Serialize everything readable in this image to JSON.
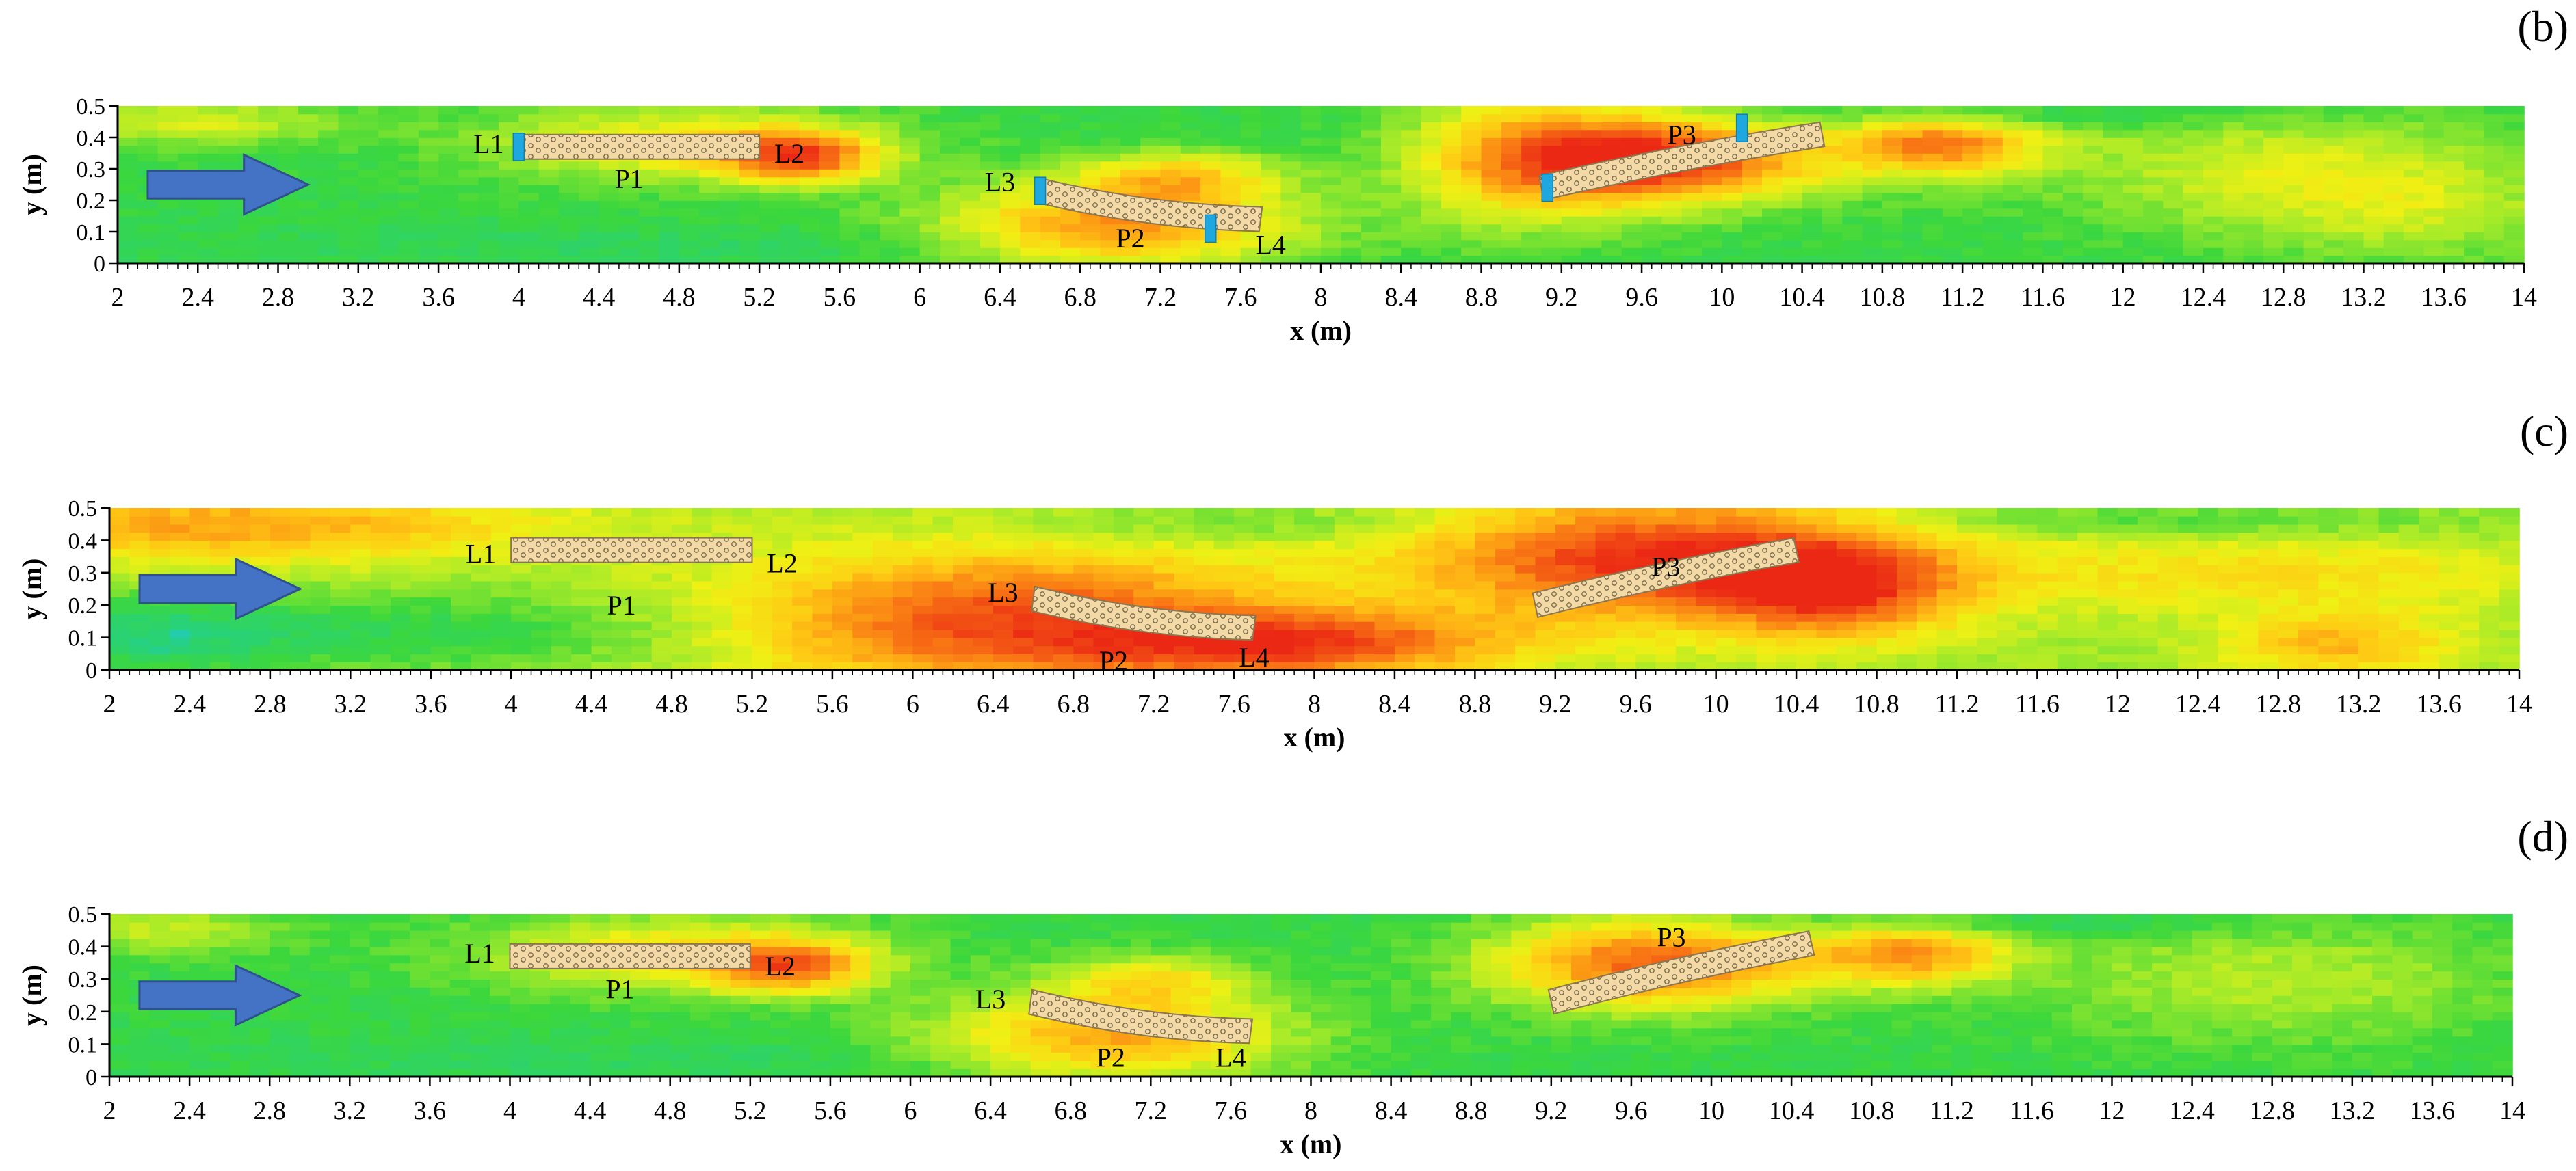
{
  "chart_data": [
    {
      "panel": "(b)",
      "type": "heatmap",
      "xlabel": "x (m)",
      "ylabel": "y (m)",
      "xlim": [
        2,
        14
      ],
      "ylim": [
        0,
        0.5
      ],
      "xticks": [
        "2",
        "2.4",
        "2.8",
        "3.2",
        "3.6",
        "4",
        "4.4",
        "4.8",
        "5.2",
        "5.6",
        "6",
        "6.4",
        "6.8",
        "7.2",
        "7.6",
        "8",
        "8.4",
        "8.8",
        "9.2",
        "9.6",
        "10",
        "10.4",
        "10.8",
        "11.2",
        "11.6",
        "12",
        "12.4",
        "12.8",
        "13.2",
        "13.6",
        "14"
      ],
      "yticks": [
        "0",
        "0.1",
        "0.2",
        "0.3",
        "0.4",
        "0.5"
      ],
      "flow_direction": "right",
      "structures": [
        {
          "label": "P1",
          "x_start": 4.0,
          "x_end": 5.2,
          "y_start": 0.37,
          "y_end": 0.37,
          "curvature": 0,
          "label_x": 4.55,
          "label_y": 0.27
        },
        {
          "label": "P2",
          "x_start": 6.6,
          "x_end": 7.7,
          "y_start": 0.23,
          "y_end": 0.14,
          "curvature": 0.05,
          "label_x": 7.05,
          "label_y": 0.08
        },
        {
          "label": "P3",
          "x_start": 9.1,
          "x_end": 10.5,
          "y_start": 0.24,
          "y_end": 0.41,
          "curvature": -0.02,
          "label_x": 9.8,
          "label_y": 0.41
        }
      ],
      "gaps": [
        {
          "label": "L1",
          "x": 4.0,
          "y": 0.37,
          "label_x": 3.85,
          "label_y": 0.38,
          "marker": true
        },
        {
          "label": "L2",
          "x": 5.2,
          "y": 0.37,
          "label_x": 5.35,
          "label_y": 0.35,
          "marker": false
        },
        {
          "label": "L3",
          "x": 6.6,
          "y": 0.23,
          "label_x": 6.4,
          "label_y": 0.26,
          "marker": true
        },
        {
          "label": "L4",
          "x": 7.45,
          "y": 0.11,
          "label_x": 7.75,
          "label_y": 0.06,
          "marker": true
        },
        {
          "label": "P3-lower",
          "x": 9.13,
          "y": 0.24,
          "marker": true
        },
        {
          "label": "P3-upper",
          "x": 10.1,
          "y": 0.43,
          "marker": true
        }
      ],
      "field": {
        "base": 0.22,
        "blobs": [
          {
            "x": 2.4,
            "y": 0.45,
            "rx": 0.7,
            "ry": 0.08,
            "a": 0.25
          },
          {
            "x": 4.8,
            "y": 0.38,
            "rx": 1.0,
            "ry": 0.12,
            "a": 0.35
          },
          {
            "x": 5.4,
            "y": 0.34,
            "rx": 0.4,
            "ry": 0.08,
            "a": 0.55
          },
          {
            "x": 7.0,
            "y": 0.12,
            "rx": 0.9,
            "ry": 0.14,
            "a": 0.55
          },
          {
            "x": 7.3,
            "y": 0.28,
            "rx": 0.5,
            "ry": 0.08,
            "a": 0.35
          },
          {
            "x": 9.0,
            "y": 0.35,
            "rx": 0.6,
            "ry": 0.25,
            "a": 0.35
          },
          {
            "x": 9.7,
            "y": 0.33,
            "rx": 0.8,
            "ry": 0.14,
            "a": 0.75
          },
          {
            "x": 11.1,
            "y": 0.38,
            "rx": 0.5,
            "ry": 0.1,
            "a": 0.55
          },
          {
            "x": 12.8,
            "y": 0.3,
            "rx": 1.2,
            "ry": 0.2,
            "a": 0.25
          },
          {
            "x": 13.5,
            "y": 0.15,
            "rx": 0.8,
            "ry": 0.15,
            "a": 0.15
          },
          {
            "x": 5.0,
            "y": 0.05,
            "rx": 2.5,
            "ry": 0.07,
            "a": -0.05
          },
          {
            "x": 11.5,
            "y": 0.47,
            "rx": 1.5,
            "ry": 0.04,
            "a": -0.1
          }
        ]
      }
    },
    {
      "panel": "(c)",
      "type": "heatmap",
      "xlabel": "x (m)",
      "ylabel": "y (m)",
      "xlim": [
        2,
        14
      ],
      "ylim": [
        0,
        0.5
      ],
      "xticks": [
        "2",
        "2.4",
        "2.8",
        "3.2",
        "3.6",
        "4",
        "4.4",
        "4.8",
        "5.2",
        "5.6",
        "6",
        "6.4",
        "6.8",
        "7.2",
        "7.6",
        "8",
        "8.4",
        "8.8",
        "9.2",
        "9.6",
        "10",
        "10.4",
        "10.8",
        "11.2",
        "11.6",
        "12",
        "12.4",
        "12.8",
        "13.2",
        "13.6",
        "14"
      ],
      "yticks": [
        "0",
        "0.1",
        "0.2",
        "0.3",
        "0.4",
        "0.5"
      ],
      "flow_direction": "right",
      "structures": [
        {
          "label": "P1",
          "x_start": 4.0,
          "x_end": 5.2,
          "y_start": 0.37,
          "y_end": 0.37,
          "curvature": 0,
          "label_x": 4.55,
          "label_y": 0.2
        },
        {
          "label": "P2",
          "x_start": 6.6,
          "x_end": 7.7,
          "y_start": 0.22,
          "y_end": 0.13,
          "curvature": 0.05,
          "label_x": 7.0,
          "label_y": 0.03
        },
        {
          "label": "P3",
          "x_start": 9.1,
          "x_end": 10.4,
          "y_start": 0.2,
          "y_end": 0.37,
          "curvature": -0.02,
          "label_x": 9.75,
          "label_y": 0.32
        }
      ],
      "gaps": [
        {
          "label": "L1",
          "x": 4.0,
          "y": 0.37,
          "label_x": 3.85,
          "label_y": 0.36,
          "marker": false
        },
        {
          "label": "L2",
          "x": 5.2,
          "y": 0.37,
          "label_x": 5.35,
          "label_y": 0.33,
          "marker": false
        },
        {
          "label": "L3",
          "x": 6.6,
          "y": 0.22,
          "label_x": 6.45,
          "label_y": 0.24,
          "marker": false
        },
        {
          "label": "L4",
          "x": 7.6,
          "y": 0.1,
          "label_x": 7.7,
          "label_y": 0.04,
          "marker": false
        }
      ],
      "field": {
        "base": 0.38,
        "blobs": [
          {
            "x": 2.6,
            "y": 0.45,
            "rx": 1.6,
            "ry": 0.12,
            "a": 0.35
          },
          {
            "x": 3.5,
            "y": 0.12,
            "rx": 1.6,
            "ry": 0.12,
            "a": -0.18
          },
          {
            "x": 2.2,
            "y": 0.1,
            "rx": 0.6,
            "ry": 0.12,
            "a": -0.2
          },
          {
            "x": 6.5,
            "y": 0.15,
            "rx": 1.4,
            "ry": 0.22,
            "a": 0.55
          },
          {
            "x": 8.0,
            "y": 0.08,
            "rx": 1.0,
            "ry": 0.1,
            "a": 0.45
          },
          {
            "x": 9.7,
            "y": 0.35,
            "rx": 1.2,
            "ry": 0.2,
            "a": 0.6
          },
          {
            "x": 10.6,
            "y": 0.25,
            "rx": 0.6,
            "ry": 0.15,
            "a": 0.45
          },
          {
            "x": 12.7,
            "y": 0.3,
            "rx": 1.6,
            "ry": 0.12,
            "a": 0.2
          },
          {
            "x": 13.1,
            "y": 0.08,
            "rx": 0.6,
            "ry": 0.1,
            "a": 0.3
          },
          {
            "x": 7.8,
            "y": 0.45,
            "rx": 1.2,
            "ry": 0.06,
            "a": -0.1
          },
          {
            "x": 12.0,
            "y": 0.46,
            "rx": 1.8,
            "ry": 0.05,
            "a": -0.12
          }
        ]
      }
    },
    {
      "panel": "(d)",
      "type": "heatmap",
      "xlabel": "x (m)",
      "ylabel": "y (m)",
      "xlim": [
        2,
        14
      ],
      "ylim": [
        0,
        0.5
      ],
      "xticks": [
        "2",
        "2.4",
        "2.8",
        "3.2",
        "3.6",
        "4",
        "4.4",
        "4.8",
        "5.2",
        "5.6",
        "6",
        "6.4",
        "6.8",
        "7.2",
        "7.6",
        "8",
        "8.4",
        "8.8",
        "9.2",
        "9.6",
        "10",
        "10.4",
        "10.8",
        "11.2",
        "11.6",
        "12",
        "12.4",
        "12.8",
        "13.2",
        "13.6",
        "14"
      ],
      "yticks": [
        "0",
        "0.1",
        "0.2",
        "0.3",
        "0.4",
        "0.5"
      ],
      "flow_direction": "right",
      "structures": [
        {
          "label": "P1",
          "x_start": 4.0,
          "x_end": 5.2,
          "y_start": 0.37,
          "y_end": 0.37,
          "curvature": 0,
          "label_x": 4.55,
          "label_y": 0.27
        },
        {
          "label": "P2",
          "x_start": 6.6,
          "x_end": 7.7,
          "y_start": 0.23,
          "y_end": 0.14,
          "curvature": 0.05,
          "label_x": 7.0,
          "label_y": 0.06
        },
        {
          "label": "P3",
          "x_start": 9.2,
          "x_end": 10.5,
          "y_start": 0.23,
          "y_end": 0.41,
          "curvature": -0.02,
          "label_x": 9.8,
          "label_y": 0.43
        }
      ],
      "gaps": [
        {
          "label": "L1",
          "x": 4.0,
          "y": 0.37,
          "label_x": 3.85,
          "label_y": 0.38,
          "marker": false
        },
        {
          "label": "L2",
          "x": 5.2,
          "y": 0.37,
          "label_x": 5.35,
          "label_y": 0.34,
          "marker": false
        },
        {
          "label": "L3",
          "x": 6.6,
          "y": 0.23,
          "label_x": 6.4,
          "label_y": 0.24,
          "marker": false
        },
        {
          "label": "L4",
          "x": 7.6,
          "y": 0.1,
          "label_x": 7.6,
          "label_y": 0.06,
          "marker": false
        }
      ],
      "field": {
        "base": 0.22,
        "blobs": [
          {
            "x": 2.3,
            "y": 0.45,
            "rx": 0.6,
            "ry": 0.08,
            "a": 0.22
          },
          {
            "x": 4.8,
            "y": 0.38,
            "rx": 1.0,
            "ry": 0.12,
            "a": 0.35
          },
          {
            "x": 5.4,
            "y": 0.34,
            "rx": 0.4,
            "ry": 0.08,
            "a": 0.5
          },
          {
            "x": 7.0,
            "y": 0.12,
            "rx": 0.9,
            "ry": 0.14,
            "a": 0.5
          },
          {
            "x": 7.2,
            "y": 0.3,
            "rx": 0.5,
            "ry": 0.08,
            "a": 0.3
          },
          {
            "x": 9.7,
            "y": 0.35,
            "rx": 0.8,
            "ry": 0.14,
            "a": 0.65
          },
          {
            "x": 11.0,
            "y": 0.38,
            "rx": 0.5,
            "ry": 0.1,
            "a": 0.5
          },
          {
            "x": 12.8,
            "y": 0.3,
            "rx": 1.2,
            "ry": 0.2,
            "a": 0.2
          },
          {
            "x": 5.0,
            "y": 0.05,
            "rx": 2.5,
            "ry": 0.07,
            "a": -0.05
          },
          {
            "x": 11.5,
            "y": 0.47,
            "rx": 1.5,
            "ry": 0.04,
            "a": -0.1
          }
        ]
      }
    }
  ]
}
